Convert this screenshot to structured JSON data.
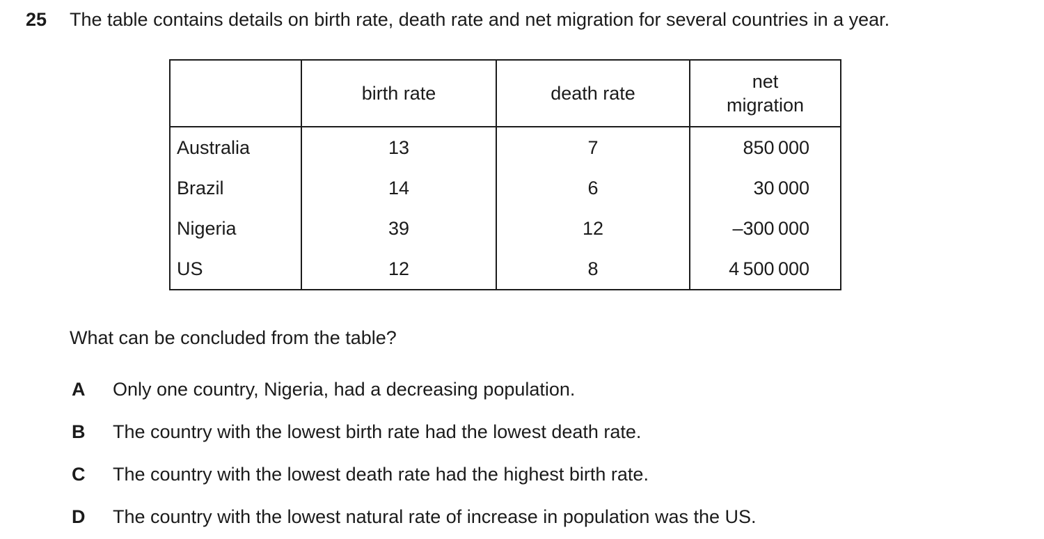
{
  "page": {
    "background_color": "#ffffff",
    "text_color": "#1b1b1b"
  },
  "question": {
    "number": "25",
    "prompt": "The table contains details on birth rate, death rate and net migration for several countries in a year.",
    "sub_question": "What can be concluded from the table?"
  },
  "table": {
    "col_headers": [
      "",
      "birth rate",
      "death rate",
      "net migration"
    ],
    "rows": [
      {
        "country": "Australia",
        "birth_rate": "13",
        "death_rate": "7",
        "net_migration": "850 000"
      },
      {
        "country": "Brazil",
        "birth_rate": "14",
        "death_rate": "6",
        "net_migration": "30 000"
      },
      {
        "country": "Nigeria",
        "birth_rate": "39",
        "death_rate": "12",
        "net_migration": "–300 000"
      },
      {
        "country": "US",
        "birth_rate": "12",
        "death_rate": "8",
        "net_migration": "4 500 000"
      }
    ]
  },
  "options": [
    {
      "letter": "A",
      "text": "Only one country, Nigeria, had a decreasing population."
    },
    {
      "letter": "B",
      "text": "The country with the lowest birth rate had the lowest death rate."
    },
    {
      "letter": "C",
      "text": "The country with the lowest death rate had the highest birth rate."
    },
    {
      "letter": "D",
      "text": "The country with the lowest natural rate of increase in population was the US."
    }
  ]
}
